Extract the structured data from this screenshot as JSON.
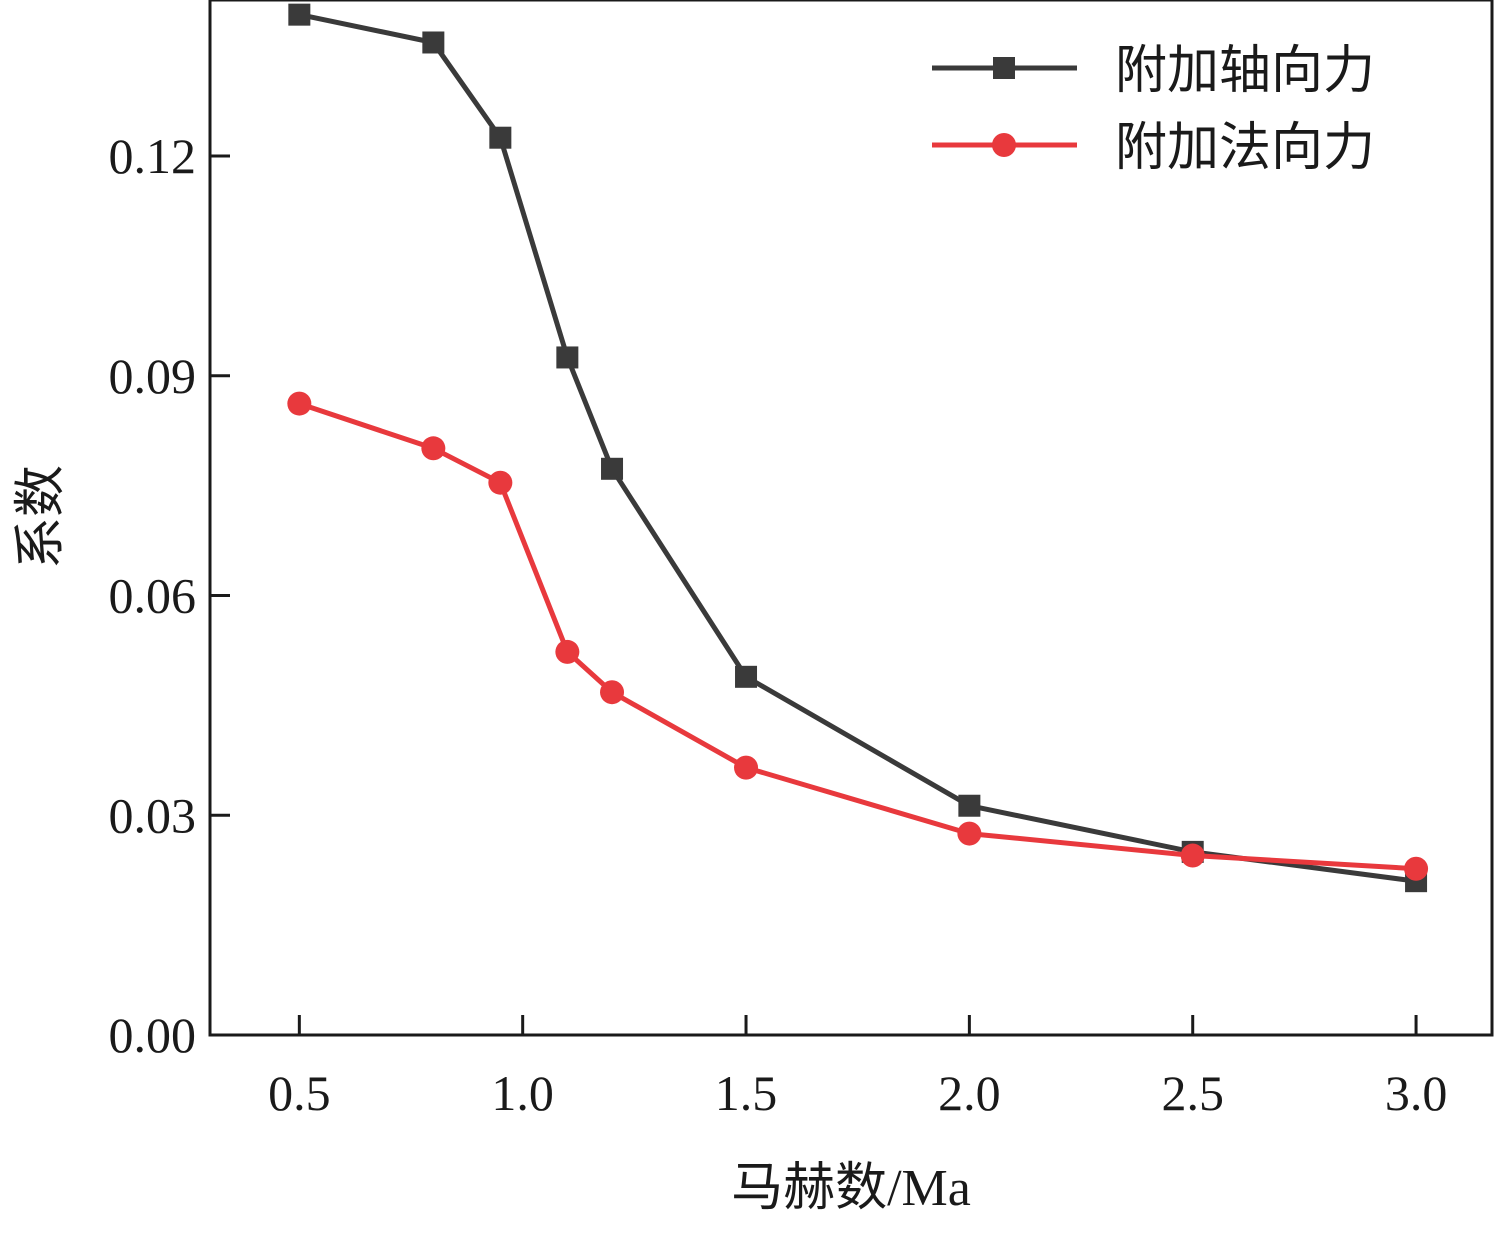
{
  "chart_data": {
    "type": "line",
    "xlabel": "马赫数/Ma",
    "ylabel": "系数",
    "xlim": [
      0.3,
      3.17
    ],
    "ylim": [
      0.0,
      0.1413
    ],
    "xticks": [
      "0.5",
      "1.0",
      "1.5",
      "2.0",
      "2.5",
      "3.0"
    ],
    "yticks": [
      "0.00",
      "0.03",
      "0.06",
      "0.09",
      "0.12"
    ],
    "grid": false,
    "legend_position": "top-right",
    "x": [
      0.5,
      0.8,
      0.95,
      1.1,
      1.2,
      1.5,
      2.0,
      2.5,
      3.0
    ],
    "series": [
      {
        "name": "附加轴向力",
        "color": "#3a3a3a",
        "marker": "square",
        "values": [
          0.1393,
          0.1355,
          0.1225,
          0.0925,
          0.0773,
          0.0489,
          0.0313,
          0.025,
          0.021
        ]
      },
      {
        "name": "附加法向力",
        "color": "#e8393d",
        "marker": "circle",
        "values": [
          0.0862,
          0.0801,
          0.0754,
          0.0523,
          0.0468,
          0.0365,
          0.0275,
          0.0245,
          0.0227
        ]
      }
    ]
  }
}
